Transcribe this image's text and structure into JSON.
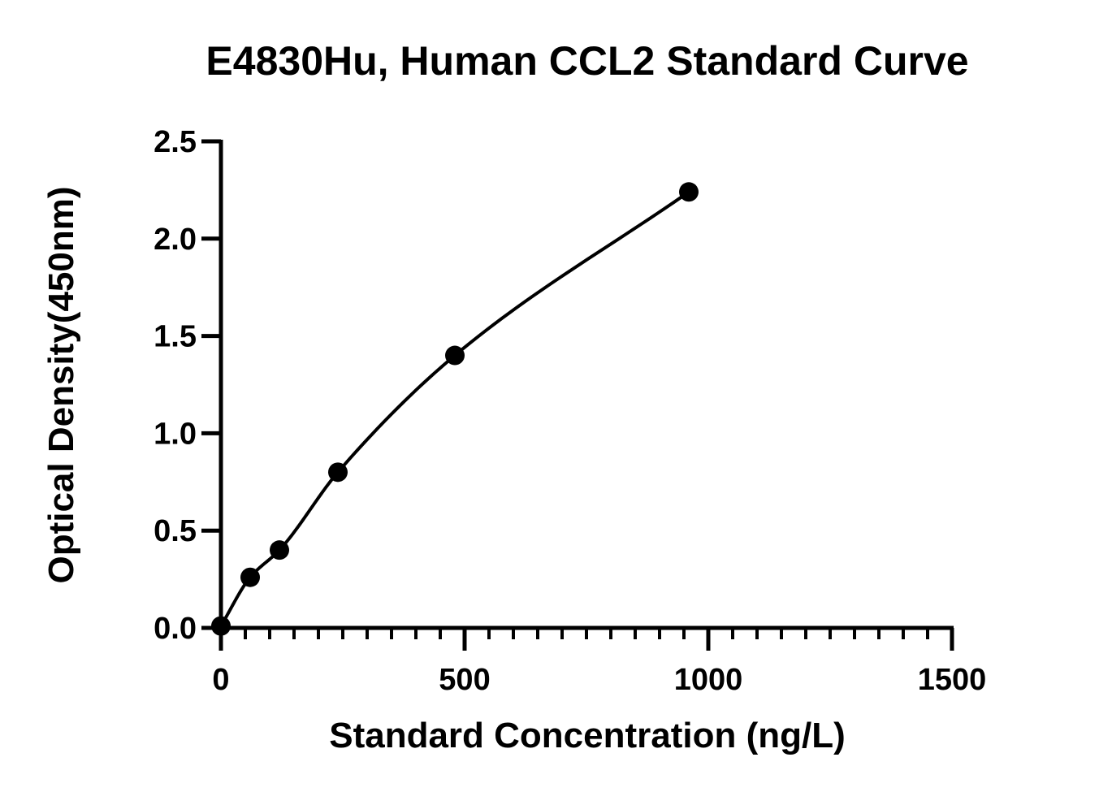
{
  "chart_data": {
    "type": "scatter",
    "title": "E4830Hu, Human CCL2 Standard Curve",
    "xlabel": "Standard Concentration (ng/L)",
    "ylabel": "Optical Density(450nm)",
    "xlim": [
      0,
      1500
    ],
    "ylim": [
      0,
      2.5
    ],
    "x_ticks": [
      0,
      500,
      1000,
      1500
    ],
    "y_ticks": [
      0.0,
      0.5,
      1.0,
      1.5,
      2.0,
      2.5
    ],
    "x_tick_labels": [
      "0",
      "500",
      "1000",
      "1500"
    ],
    "y_tick_labels": [
      "0.0",
      "0.5",
      "1.0",
      "1.5",
      "2.0",
      "2.5"
    ],
    "x_minor_step": 50,
    "grid": false,
    "fit_curve": true,
    "series": [
      {
        "x": [
          0,
          60,
          120,
          240,
          480,
          960
        ],
        "values": [
          0.01,
          0.26,
          0.4,
          0.8,
          1.4,
          2.24
        ]
      }
    ],
    "colors": {
      "marker": "#000000",
      "curve": "#000000",
      "axis": "#000000"
    }
  }
}
